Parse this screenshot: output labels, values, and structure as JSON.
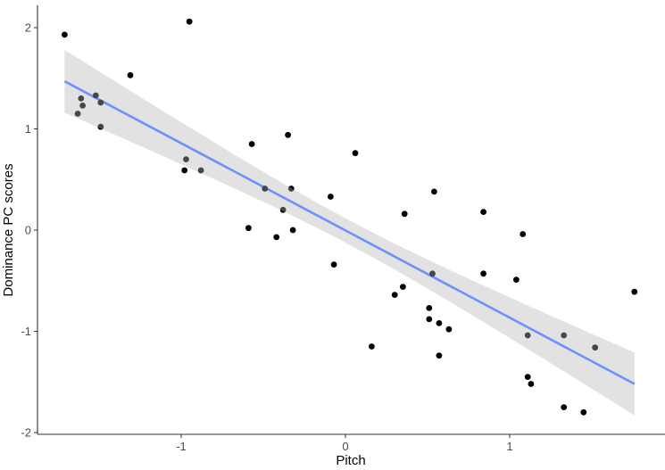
{
  "chart_data": {
    "type": "scatter",
    "title": "",
    "xlabel": "Pitch",
    "ylabel": "Dominance PC scores",
    "xlim": [
      -1.87,
      1.92
    ],
    "ylim": [
      -2.02,
      2.25
    ],
    "x_ticks": [
      -1,
      0,
      1
    ],
    "x_tick_labels": [
      "-1",
      "0",
      "1"
    ],
    "y_ticks": [
      -2,
      -1,
      0,
      1,
      2
    ],
    "y_tick_labels": [
      "-2",
      "-1",
      "0",
      "1",
      "2"
    ],
    "grid": false,
    "legend": null,
    "colors": {
      "points": "#000000",
      "fit_line": "#3366ff",
      "confidence_band": "#d3d3d3",
      "axis": "#333333"
    },
    "points": [
      {
        "x": -1.71,
        "y": 1.93
      },
      {
        "x": -0.95,
        "y": 2.06
      },
      {
        "x": -1.31,
        "y": 1.53
      },
      {
        "x": -1.61,
        "y": 1.3
      },
      {
        "x": -1.6,
        "y": 1.23
      },
      {
        "x": -1.63,
        "y": 1.15
      },
      {
        "x": -1.52,
        "y": 1.33
      },
      {
        "x": -1.49,
        "y": 1.26
      },
      {
        "x": -1.49,
        "y": 1.02
      },
      {
        "x": -0.57,
        "y": 0.85
      },
      {
        "x": -0.35,
        "y": 0.94
      },
      {
        "x": -0.97,
        "y": 0.7
      },
      {
        "x": -0.98,
        "y": 0.59
      },
      {
        "x": -0.88,
        "y": 0.59
      },
      {
        "x": -0.49,
        "y": 0.41
      },
      {
        "x": -0.33,
        "y": 0.41
      },
      {
        "x": -0.38,
        "y": 0.2
      },
      {
        "x": -0.59,
        "y": 0.02
      },
      {
        "x": -0.42,
        "y": -0.07
      },
      {
        "x": -0.32,
        "y": 0.0
      },
      {
        "x": 0.06,
        "y": 0.76
      },
      {
        "x": -0.09,
        "y": 0.33
      },
      {
        "x": -0.07,
        "y": -0.34
      },
      {
        "x": 0.54,
        "y": 0.38
      },
      {
        "x": 0.36,
        "y": 0.16
      },
      {
        "x": 0.53,
        "y": -0.43
      },
      {
        "x": 0.35,
        "y": -0.56
      },
      {
        "x": 0.3,
        "y": -0.64
      },
      {
        "x": 0.51,
        "y": -0.77
      },
      {
        "x": 0.51,
        "y": -0.88
      },
      {
        "x": 0.57,
        "y": -0.92
      },
      {
        "x": 0.63,
        "y": -0.98
      },
      {
        "x": 0.16,
        "y": -1.15
      },
      {
        "x": 0.57,
        "y": -1.24
      },
      {
        "x": 0.84,
        "y": 0.18
      },
      {
        "x": 0.84,
        "y": -0.43
      },
      {
        "x": 1.08,
        "y": -0.04
      },
      {
        "x": 1.04,
        "y": -0.49
      },
      {
        "x": 1.11,
        "y": -1.04
      },
      {
        "x": 1.33,
        "y": -1.04
      },
      {
        "x": 1.52,
        "y": -1.16
      },
      {
        "x": 1.76,
        "y": -0.61
      },
      {
        "x": 1.11,
        "y": -1.45
      },
      {
        "x": 1.13,
        "y": -1.52
      },
      {
        "x": 1.33,
        "y": -1.75
      },
      {
        "x": 1.45,
        "y": -1.8
      }
    ],
    "regression": {
      "method": "lm",
      "x_start": -1.71,
      "y_start": 1.47,
      "x_end": 1.76,
      "y_end": -1.52,
      "band_start": [
        1.77,
        1.15
      ],
      "band_end": [
        -1.2,
        -1.83
      ],
      "band_mid_halfwidth": 0.12
    }
  }
}
